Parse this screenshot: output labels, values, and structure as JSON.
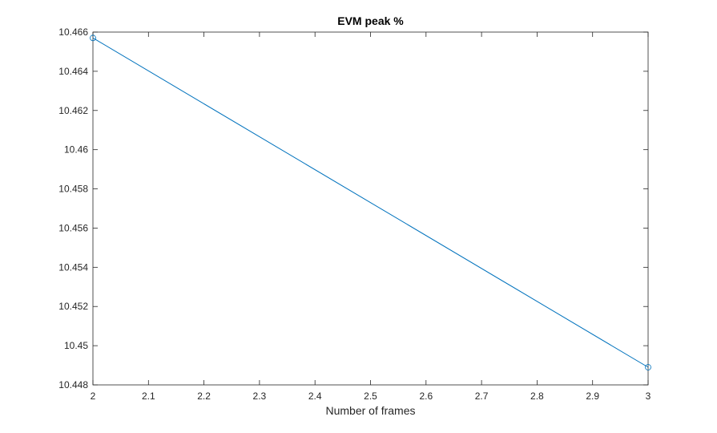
{
  "chart_data": {
    "type": "line",
    "title": "EVM peak %",
    "xlabel": "Number of frames",
    "ylabel": "",
    "xlim": [
      2,
      3
    ],
    "ylim": [
      10.448,
      10.466
    ],
    "x_ticks": [
      2,
      2.1,
      2.2,
      2.3,
      2.4,
      2.5,
      2.6,
      2.7,
      2.8,
      2.9,
      3
    ],
    "x_tick_labels": [
      "2",
      "2.1",
      "2.2",
      "2.3",
      "2.4",
      "2.5",
      "2.6",
      "2.7",
      "2.8",
      "2.9",
      "3"
    ],
    "y_ticks": [
      10.448,
      10.45,
      10.452,
      10.454,
      10.456,
      10.458,
      10.46,
      10.462,
      10.464,
      10.466
    ],
    "y_tick_labels": [
      "10.448",
      "10.45",
      "10.452",
      "10.454",
      "10.456",
      "10.458",
      "10.46",
      "10.462",
      "10.464",
      "10.466"
    ],
    "grid": false,
    "series": [
      {
        "x": [
          2,
          3
        ],
        "y": [
          10.4657,
          10.4489
        ],
        "marker": "circle",
        "color": "#0072BD"
      }
    ]
  },
  "colors": {
    "axis": "#262626",
    "background": "#ffffff"
  }
}
